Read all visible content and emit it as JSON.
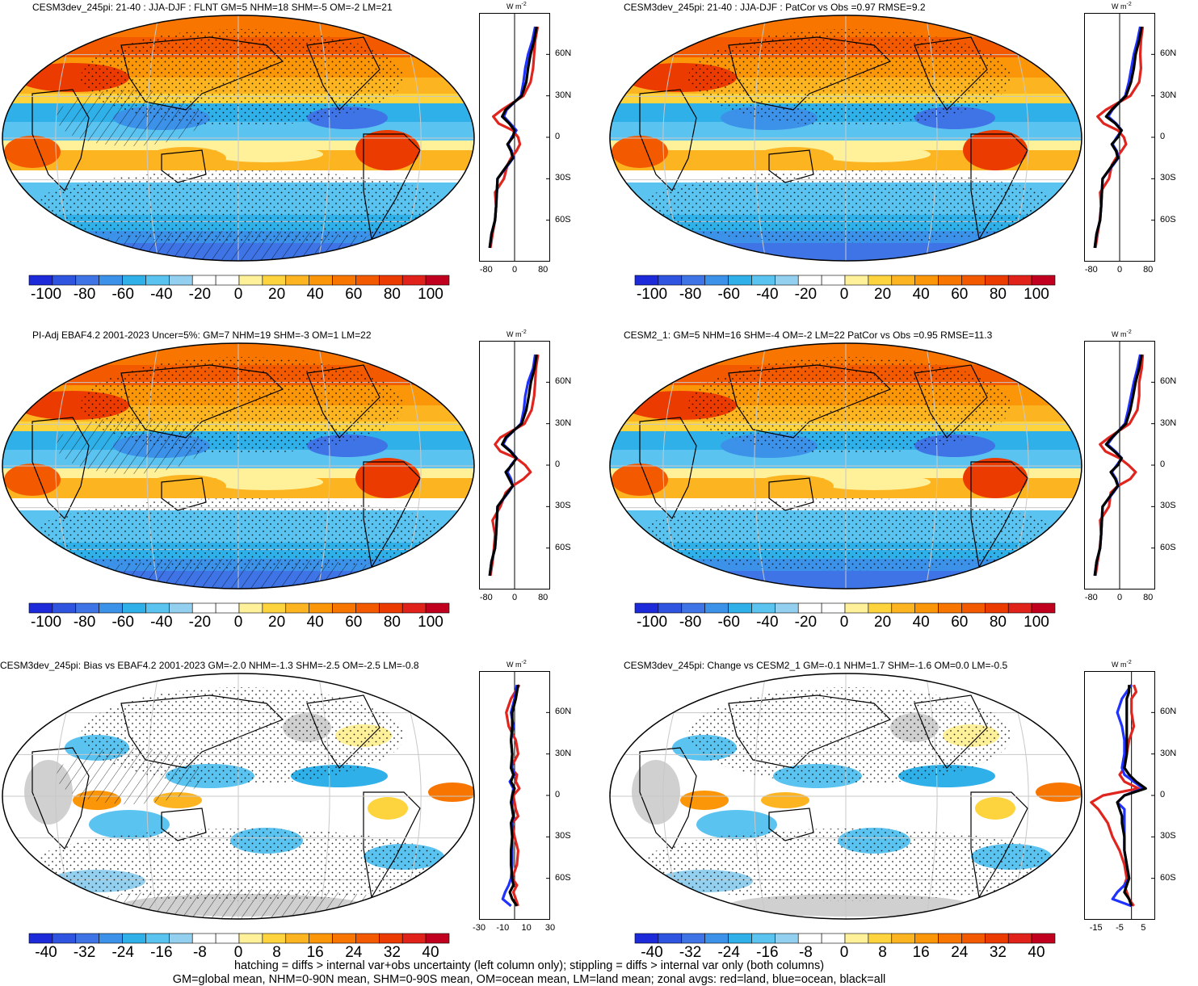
{
  "colors": {
    "scale": [
      "#1d2ad9",
      "#2f54e0",
      "#3f74e6",
      "#3b92e8",
      "#2fb0e8",
      "#5bc3f0",
      "#93cfee",
      "#ffffff",
      "#ffffff",
      "#fff09a",
      "#fed43e",
      "#fdb421",
      "#fb9608",
      "#f87600",
      "#f35a00",
      "#ec3b00",
      "#e1221a",
      "#c0001e"
    ],
    "land": "#e0251f",
    "ocean": "#1f32ff",
    "all": "#000000",
    "missing": "#d0d0d0",
    "grid": "#c8c8c8"
  },
  "footer": {
    "line1": "hatching = diffs > internal var+obs uncertainty (left column only); stippling = diffs > internal var only (both columns)",
    "line2": "GM=global mean, NHM=0-90N mean, SHM=0-90S mean, OM=ocean mean, LM=land mean; zonal avgs: red=land, blue=ocean, black=all"
  },
  "panels": [
    {
      "title": "CESM3dev_245pi: 21-40 : JJA-DJF : FLNT GM=5 NHM=18 SHM=-5 OM=-2 LM=21",
      "kind": "clim",
      "hatch": true,
      "colorbar_labels": [
        "-100",
        "-80",
        "-60",
        "-40",
        "-20",
        "0",
        "20",
        "40",
        "60",
        "80",
        "100"
      ],
      "zonal": {
        "units_label": "W m",
        "units_sup": "-2",
        "y_ticks": [
          "60N",
          "30N",
          "0",
          "30S",
          "60S"
        ],
        "x_ticks": [
          "-80",
          "0",
          "80"
        ],
        "xlim": [
          -100,
          100
        ],
        "lat": [
          80,
          70,
          60,
          50,
          40,
          30,
          20,
          15,
          10,
          5,
          0,
          -5,
          -10,
          -15,
          -20,
          -30,
          -40,
          -50,
          -60,
          -70,
          -80
        ],
        "all": [
          62,
          55,
          45,
          38,
          33,
          20,
          -25,
          -35,
          -15,
          0,
          -5,
          -20,
          -10,
          -5,
          -20,
          -48,
          -50,
          -52,
          -55,
          -65,
          -70
        ],
        "ocean": [
          58,
          50,
          38,
          30,
          25,
          18,
          -22,
          -30,
          -12,
          5,
          -8,
          -18,
          -8,
          -4,
          -18,
          -48,
          -50,
          -52,
          -55,
          -65,
          -70
        ],
        "land": [
          65,
          58,
          55,
          52,
          45,
          25,
          -35,
          -60,
          -45,
          -5,
          10,
          15,
          5,
          -10,
          -20,
          -30,
          -55,
          -52,
          -55,
          -62,
          -68
        ]
      }
    },
    {
      "title": "CESM3dev_245pi: 21-40 : JJA-DJF : PatCor vs Obs =0.97 RMSE=9.2",
      "kind": "clim",
      "hatch": false,
      "colorbar_labels": [
        "-100",
        "-80",
        "-60",
        "-40",
        "-20",
        "0",
        "20",
        "40",
        "60",
        "80",
        "100"
      ],
      "zonal": {
        "units_label": "W m",
        "units_sup": "-2",
        "y_ticks": [
          "60N",
          "30N",
          "0",
          "30S",
          "60S"
        ],
        "x_ticks": [
          "-80",
          "0",
          "80"
        ],
        "xlim": [
          -100,
          100
        ],
        "lat": [
          80,
          70,
          60,
          50,
          40,
          30,
          20,
          15,
          10,
          5,
          0,
          -5,
          -10,
          -15,
          -20,
          -30,
          -40,
          -50,
          -60,
          -70,
          -80
        ],
        "all": [
          62,
          55,
          45,
          40,
          32,
          18,
          -22,
          -38,
          -12,
          5,
          -5,
          -22,
          -10,
          -5,
          -20,
          -48,
          -50,
          -52,
          -55,
          -65,
          -70
        ],
        "ocean": [
          58,
          50,
          40,
          33,
          26,
          16,
          -20,
          -32,
          -10,
          6,
          -8,
          -20,
          -8,
          -4,
          -18,
          -48,
          -50,
          -52,
          -55,
          -65,
          -70
        ],
        "land": [
          65,
          60,
          58,
          60,
          55,
          30,
          -38,
          -62,
          -45,
          -5,
          12,
          18,
          5,
          -10,
          -22,
          -30,
          -55,
          -52,
          -56,
          -62,
          -68
        ]
      }
    },
    {
      "title": "PI-Adj EBAF4.2 2001-2023 Uncer=5%: GM=7 NHM=19 SHM=-3 OM=1 LM=22",
      "kind": "clim",
      "hatch": true,
      "colorbar_labels": [
        "-100",
        "-80",
        "-60",
        "-40",
        "-20",
        "0",
        "20",
        "40",
        "60",
        "80",
        "100"
      ],
      "zonal": {
        "units_label": "W m",
        "units_sup": "-2",
        "y_ticks": [
          "60N",
          "30N",
          "0",
          "30S",
          "60S"
        ],
        "x_ticks": [
          "-80",
          "0",
          "80"
        ],
        "xlim": [
          -100,
          100
        ],
        "lat": [
          80,
          70,
          60,
          50,
          40,
          30,
          20,
          15,
          10,
          5,
          0,
          -5,
          -10,
          -15,
          -20,
          -30,
          -40,
          -50,
          -60,
          -70,
          -80
        ],
        "all": [
          62,
          56,
          46,
          40,
          33,
          20,
          -25,
          -35,
          -12,
          5,
          -8,
          -25,
          -15,
          -5,
          -20,
          -48,
          -50,
          -52,
          -55,
          -65,
          -70
        ],
        "ocean": [
          58,
          52,
          38,
          30,
          26,
          18,
          -22,
          -32,
          -10,
          6,
          -10,
          -20,
          -10,
          -5,
          -18,
          -48,
          -50,
          -52,
          -55,
          -65,
          -70
        ],
        "land": [
          66,
          60,
          58,
          55,
          48,
          28,
          -40,
          -55,
          -40,
          5,
          30,
          45,
          25,
          -5,
          -25,
          -40,
          -62,
          -55,
          -58,
          -62,
          -68
        ]
      }
    },
    {
      "title": "CESM2_1: GM=5 NHM=16 SHM=-4 OM=-2 LM=22 PatCor vs Obs =0.95 RMSE=11.3",
      "kind": "clim",
      "hatch": false,
      "colorbar_labels": [
        "-100",
        "-80",
        "-60",
        "-40",
        "-20",
        "0",
        "20",
        "40",
        "60",
        "80",
        "100"
      ],
      "zonal": {
        "units_label": "W m",
        "units_sup": "-2",
        "y_ticks": [
          "60N",
          "30N",
          "0",
          "30S",
          "60S"
        ],
        "x_ticks": [
          "-80",
          "0",
          "80"
        ],
        "xlim": [
          -100,
          100
        ],
        "lat": [
          80,
          70,
          60,
          50,
          40,
          30,
          20,
          15,
          10,
          5,
          0,
          -5,
          -10,
          -15,
          -20,
          -30,
          -40,
          -50,
          -60,
          -70,
          -80
        ],
        "all": [
          62,
          55,
          45,
          38,
          30,
          18,
          -22,
          -38,
          -15,
          5,
          -5,
          -25,
          -12,
          -5,
          -20,
          -48,
          -50,
          -52,
          -55,
          -65,
          -70
        ],
        "ocean": [
          58,
          50,
          40,
          32,
          24,
          15,
          -20,
          -34,
          -12,
          6,
          -8,
          -22,
          -10,
          -4,
          -18,
          -48,
          -50,
          -52,
          -55,
          -65,
          -70
        ],
        "land": [
          65,
          62,
          55,
          55,
          50,
          28,
          -30,
          -55,
          -40,
          0,
          25,
          45,
          30,
          -5,
          -25,
          -30,
          -55,
          -52,
          -56,
          -62,
          -68
        ]
      }
    },
    {
      "title": "CESM3dev_245pi: Bias vs EBAF4.2 2001-2023 GM=-2.0 NHM=-1.3 SHM=-2.5 OM=-2.5 LM=-0.8",
      "kind": "diff",
      "hatch": true,
      "colorbar_labels": [
        "-40",
        "-32",
        "-24",
        "-16",
        "-8",
        "0",
        "8",
        "16",
        "24",
        "32",
        "40"
      ],
      "zonal": {
        "units_label": "W m",
        "units_sup": "-2",
        "y_ticks": [
          "60N",
          "30N",
          "0",
          "30S",
          "60S"
        ],
        "x_ticks": [
          "-30",
          "-10",
          "10",
          "30"
        ],
        "xlim": [
          -30,
          30
        ],
        "lat": [
          80,
          70,
          60,
          50,
          40,
          30,
          20,
          15,
          10,
          5,
          0,
          -5,
          -10,
          -15,
          -20,
          -30,
          -40,
          -50,
          -60,
          -65,
          -70,
          -75,
          -80
        ],
        "all": [
          3,
          1,
          -2,
          -2,
          -3,
          -2,
          -3,
          -1,
          -3,
          0,
          -2,
          -3,
          -2,
          -1,
          -3,
          -2,
          -3,
          -3,
          -2,
          -1,
          -4,
          -2,
          2
        ],
        "ocean": [
          2,
          0,
          -3,
          -1,
          -3,
          -2,
          -2,
          0,
          -4,
          -1,
          -2,
          -2,
          -2,
          -1,
          -2,
          -2,
          -2,
          -2,
          -3,
          -5,
          -8,
          -10,
          -3
        ],
        "land": [
          4,
          -3,
          -7,
          -5,
          1,
          3,
          -3,
          2,
          1,
          4,
          -1,
          0,
          1,
          3,
          -2,
          0,
          3,
          2,
          -2,
          2,
          -1,
          1,
          3
        ]
      }
    },
    {
      "title": "CESM3dev_245pi: Change vs CESM2_1 GM=-0.1 NHM=1.7 SHM=-1.6 OM=0.0 LM=-0.5",
      "kind": "diff",
      "hatch": false,
      "colorbar_labels": [
        "-40",
        "-32",
        "-24",
        "-16",
        "-8",
        "0",
        "8",
        "16",
        "24",
        "32",
        "40"
      ],
      "zonal": {
        "units_label": "W m",
        "units_sup": "-2",
        "y_ticks": [
          "60N",
          "30N",
          "0",
          "30S",
          "60S"
        ],
        "x_ticks": [
          "-15",
          "-5",
          "5"
        ],
        "xlim": [
          -20,
          10
        ],
        "lat": [
          80,
          75,
          70,
          60,
          50,
          40,
          30,
          20,
          15,
          10,
          5,
          0,
          -5,
          -10,
          -15,
          -20,
          -30,
          -40,
          -50,
          -60,
          -65,
          -70,
          -75,
          -80
        ],
        "all": [
          -1,
          -1,
          -2,
          -2,
          -2,
          -2,
          -2,
          -3,
          -1,
          2,
          6,
          -3,
          -6,
          -5,
          -4,
          -4,
          -3,
          -3,
          -2,
          -1,
          -2,
          -3,
          -1,
          0
        ],
        "ocean": [
          0,
          -2,
          -4,
          -6,
          -4,
          -3,
          -3,
          -4,
          -3,
          1,
          5,
          -3,
          -6,
          -3,
          -3,
          -3,
          -3,
          -3,
          -2,
          -1,
          -3,
          -6,
          -8,
          0
        ],
        "land": [
          1,
          2,
          0,
          0,
          1,
          -1,
          -2,
          -3,
          -5,
          -3,
          3,
          -12,
          -17,
          -14,
          -12,
          -10,
          -8,
          -5,
          -3,
          -2,
          -3,
          -2,
          -1,
          1
        ]
      }
    }
  ]
}
